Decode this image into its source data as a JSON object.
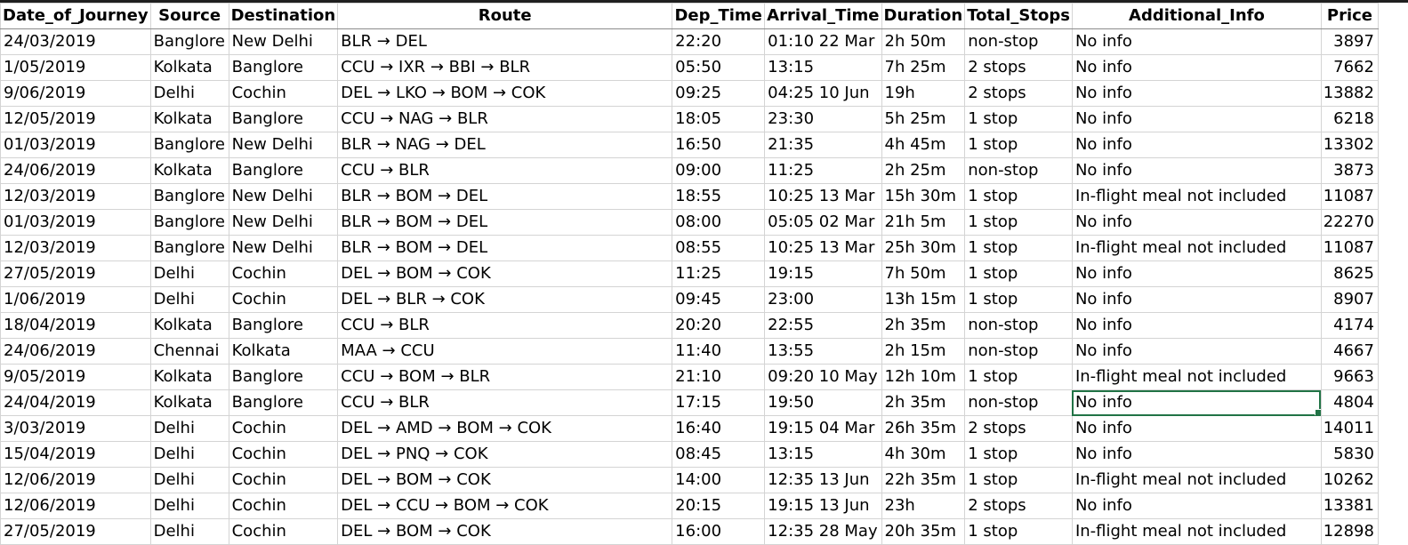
{
  "sheet": {
    "columns": [
      "Date_of_Journey",
      "Source",
      "Destination",
      "Route",
      "Dep_Time",
      "Arrival_Time",
      "Duration",
      "Total_Stops",
      "Additional_Info",
      "Price"
    ],
    "rows": [
      [
        "24/03/2019",
        "Banglore",
        "New Delhi",
        "BLR → DEL",
        "22:20",
        "01:10 22 Mar",
        "2h 50m",
        "non-stop",
        "No info",
        "3897"
      ],
      [
        "1/05/2019",
        "Kolkata",
        "Banglore",
        "CCU → IXR → BBI → BLR",
        "05:50",
        "13:15",
        "7h 25m",
        "2 stops",
        "No info",
        "7662"
      ],
      [
        "9/06/2019",
        "Delhi",
        "Cochin",
        "DEL → LKO → BOM → COK",
        "09:25",
        "04:25 10 Jun",
        "19h",
        "2 stops",
        "No info",
        "13882"
      ],
      [
        "12/05/2019",
        "Kolkata",
        "Banglore",
        "CCU → NAG → BLR",
        "18:05",
        "23:30",
        "5h 25m",
        "1 stop",
        "No info",
        "6218"
      ],
      [
        "01/03/2019",
        "Banglore",
        "New Delhi",
        "BLR → NAG → DEL",
        "16:50",
        "21:35",
        "4h 45m",
        "1 stop",
        "No info",
        "13302"
      ],
      [
        "24/06/2019",
        "Kolkata",
        "Banglore",
        "CCU → BLR",
        "09:00",
        "11:25",
        "2h 25m",
        "non-stop",
        "No info",
        "3873"
      ],
      [
        "12/03/2019",
        "Banglore",
        "New Delhi",
        "BLR → BOM → DEL",
        "18:55",
        "10:25 13 Mar",
        "15h 30m",
        "1 stop",
        "In-flight meal not included",
        "11087"
      ],
      [
        "01/03/2019",
        "Banglore",
        "New Delhi",
        "BLR → BOM → DEL",
        "08:00",
        "05:05 02 Mar",
        "21h 5m",
        "1 stop",
        "No info",
        "22270"
      ],
      [
        "12/03/2019",
        "Banglore",
        "New Delhi",
        "BLR → BOM → DEL",
        "08:55",
        "10:25 13 Mar",
        "25h 30m",
        "1 stop",
        "In-flight meal not included",
        "11087"
      ],
      [
        "27/05/2019",
        "Delhi",
        "Cochin",
        "DEL → BOM → COK",
        "11:25",
        "19:15",
        "7h 50m",
        "1 stop",
        "No info",
        "8625"
      ],
      [
        "1/06/2019",
        "Delhi",
        "Cochin",
        "DEL → BLR → COK",
        "09:45",
        "23:00",
        "13h 15m",
        "1 stop",
        "No info",
        "8907"
      ],
      [
        "18/04/2019",
        "Kolkata",
        "Banglore",
        "CCU → BLR",
        "20:20",
        "22:55",
        "2h 35m",
        "non-stop",
        "No info",
        "4174"
      ],
      [
        "24/06/2019",
        "Chennai",
        "Kolkata",
        "MAA → CCU",
        "11:40",
        "13:55",
        "2h 15m",
        "non-stop",
        "No info",
        "4667"
      ],
      [
        "9/05/2019",
        "Kolkata",
        "Banglore",
        "CCU → BOM → BLR",
        "21:10",
        "09:20 10 May",
        "12h 10m",
        "1 stop",
        "In-flight meal not included",
        "9663"
      ],
      [
        "24/04/2019",
        "Kolkata",
        "Banglore",
        "CCU → BLR",
        "17:15",
        "19:50",
        "2h 35m",
        "non-stop",
        "No info",
        "4804"
      ],
      [
        "3/03/2019",
        "Delhi",
        "Cochin",
        "DEL → AMD → BOM → COK",
        "16:40",
        "19:15 04 Mar",
        "26h 35m",
        "2 stops",
        "No info",
        "14011"
      ],
      [
        "15/04/2019",
        "Delhi",
        "Cochin",
        "DEL → PNQ → COK",
        "08:45",
        "13:15",
        "4h 30m",
        "1 stop",
        "No info",
        "5830"
      ],
      [
        "12/06/2019",
        "Delhi",
        "Cochin",
        "DEL → BOM → COK",
        "14:00",
        "12:35 13 Jun",
        "22h 35m",
        "1 stop",
        "In-flight meal not included",
        "10262"
      ],
      [
        "12/06/2019",
        "Delhi",
        "Cochin",
        "DEL → CCU → BOM → COK",
        "20:15",
        "19:15 13 Jun",
        "23h",
        "2 stops",
        "No info",
        "13381"
      ],
      [
        "27/05/2019",
        "Delhi",
        "Cochin",
        "DEL → BOM → COK",
        "16:00",
        "12:35 28 May",
        "20h 35m",
        "1 stop",
        "In-flight meal not included",
        "12898"
      ]
    ],
    "selected_row": 14,
    "selected_col": 8,
    "colors": {
      "gridline": "#d4d4d4",
      "selection": "#217346",
      "header_border": "#8c8c8c"
    }
  }
}
